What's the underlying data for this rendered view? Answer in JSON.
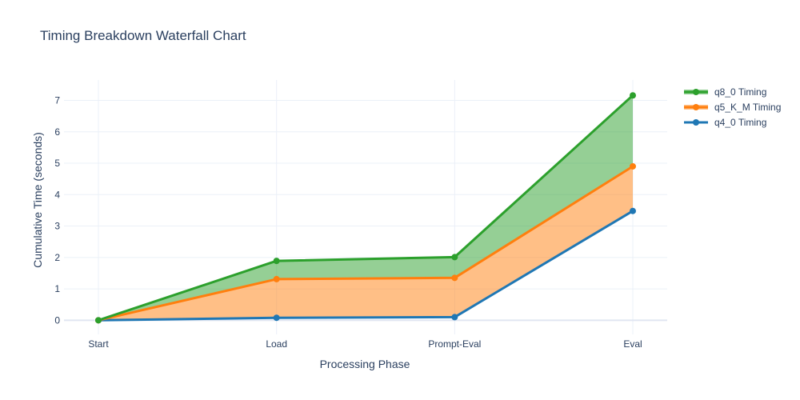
{
  "chart_data": {
    "type": "area",
    "title": "Timing Breakdown Waterfall Chart",
    "xlabel": "Processing Phase",
    "ylabel": "Cumulative Time (seconds)",
    "categories": [
      "Start",
      "Load",
      "Prompt-Eval",
      "Eval"
    ],
    "ylim": [
      -0.45,
      7.65
    ],
    "yticks": [
      "0",
      "1",
      "2",
      "3",
      "4",
      "5",
      "6",
      "7"
    ],
    "grid": true,
    "legend_position": "top-right",
    "series": [
      {
        "name": "q4_0 Timing",
        "values": [
          0,
          0.08,
          0.1,
          3.48
        ],
        "color": "#1f77b4",
        "fill": "none"
      },
      {
        "name": "q5_K_M Timing",
        "values": [
          0,
          1.31,
          1.35,
          4.9
        ],
        "color": "#ff7f0e",
        "fill": "rgba(255,127,14,0.5)"
      },
      {
        "name": "q8_0 Timing",
        "values": [
          0,
          1.89,
          2.01,
          7.16
        ],
        "color": "#2ca02c",
        "fill": "rgba(44,160,44,0.5)"
      }
    ],
    "legend_order": [
      2,
      1,
      0
    ]
  }
}
